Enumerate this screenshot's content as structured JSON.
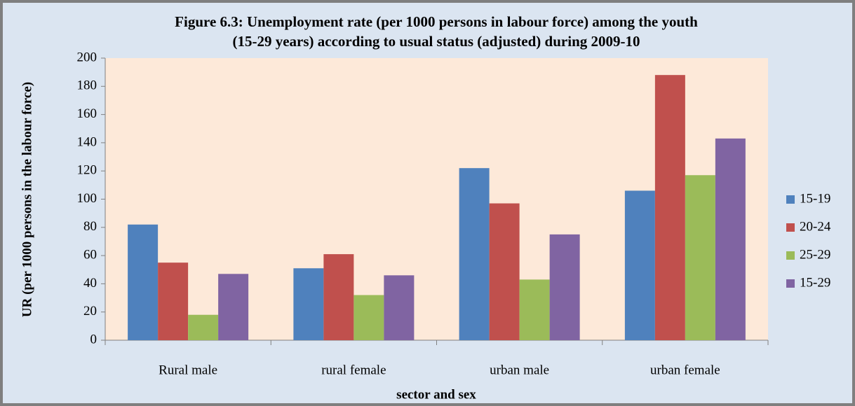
{
  "chart_data": {
    "type": "bar",
    "title": [
      "Figure 6.3: Unemployment rate (per 1000 persons in labour force) among the youth",
      "(15-29 years) according to usual status (adjusted) during 2009-10"
    ],
    "x_label": "sector and sex",
    "y_label": "UR (per 1000 persons in the labour force)",
    "categories": [
      "Rural male",
      "rural female",
      "urban male",
      "urban female"
    ],
    "series": [
      {
        "name": "15-19",
        "color": "#4f81bd",
        "values": [
          82,
          51,
          122,
          106
        ]
      },
      {
        "name": "20-24",
        "color": "#c0504d",
        "values": [
          55,
          61,
          97,
          188
        ]
      },
      {
        "name": "25-29",
        "color": "#9bbb59",
        "values": [
          18,
          32,
          43,
          117
        ]
      },
      {
        "name": "15-29",
        "color": "#8064a2",
        "values": [
          47,
          46,
          75,
          143
        ]
      }
    ],
    "ylim": [
      0,
      200
    ],
    "yticks": [
      0,
      20,
      40,
      60,
      80,
      100,
      120,
      140,
      160,
      180,
      200
    ],
    "grid": false,
    "legend": "right"
  }
}
